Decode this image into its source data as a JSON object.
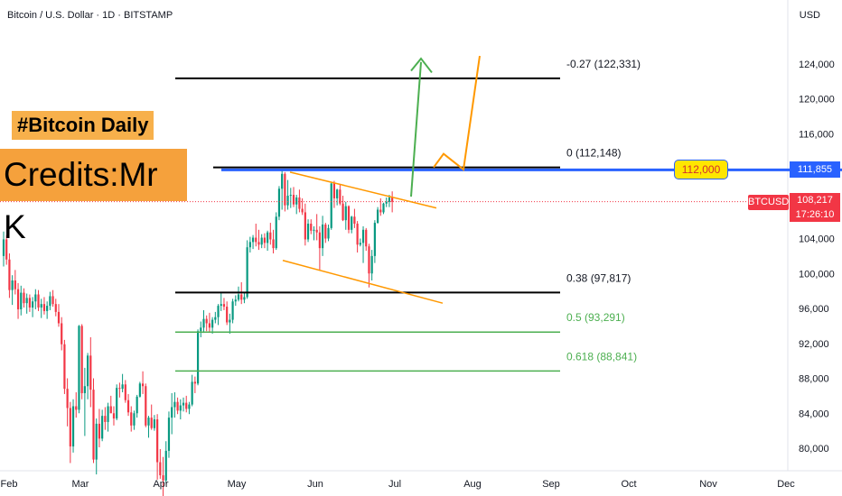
{
  "header": {
    "title": "Bitcoin / U.S. Dollar · 1D · BITSTAMP",
    "currency": "USD"
  },
  "badges": {
    "daily": "#Bitcoin Daily",
    "credits": "Credits:Mr K"
  },
  "price_tags": {
    "level_line": "111,855",
    "symbol": "BTCUSD",
    "last_price": "108,217",
    "countdown": "17:26:10",
    "target": "112,000"
  },
  "colors": {
    "up": "#089981",
    "down": "#f23645",
    "fib_black": "#000000",
    "fib_green": "#4caf50",
    "resistance": "#2962ff",
    "channel": "#ff9800",
    "arrow_green": "#4caf50",
    "arrow_orange": "#ff9800"
  },
  "chart_data": {
    "type": "candlestick",
    "y_axis": {
      "min": 77000,
      "max": 128000,
      "ticks": [
        80000,
        84000,
        88000,
        92000,
        96000,
        100000,
        104000,
        108000,
        112000,
        116000,
        120000,
        124000
      ],
      "tick_labels": [
        "80,000",
        "84,000",
        "88,000",
        "92,000",
        "96,000",
        "100,000",
        "104,000",
        "108,000",
        "112,000",
        "116,000",
        "120,000",
        "124,000"
      ]
    },
    "x_axis": {
      "labels": [
        "Feb",
        "Mar",
        "Apr",
        "May",
        "Jun",
        "Jul",
        "Aug",
        "Sep",
        "Oct",
        "Nov",
        "Dec"
      ]
    },
    "fib_levels": [
      {
        "label": "-0.27 (122,331)",
        "price": 122331,
        "color": "black"
      },
      {
        "label": "0 (112,148)",
        "price": 112148,
        "color": "black"
      },
      {
        "label": "0.38 (97,817)",
        "price": 97817,
        "color": "black"
      },
      {
        "label": "0.5 (93,291)",
        "price": 93291,
        "color": "green"
      },
      {
        "label": "0.618 (88,841)",
        "price": 88841,
        "color": "green"
      }
    ],
    "resistance": 111855,
    "candles": [
      [
        0,
        102000,
        104800,
        100800,
        103900
      ],
      [
        1,
        103900,
        104400,
        101000,
        101600
      ],
      [
        2,
        101600,
        102300,
        97200,
        98100
      ],
      [
        3,
        98100,
        99800,
        96400,
        99200
      ],
      [
        4,
        99200,
        100400,
        97600,
        98200
      ],
      [
        5,
        98200,
        98900,
        94800,
        95900
      ],
      [
        6,
        95900,
        98600,
        95200,
        97800
      ],
      [
        7,
        97800,
        98300,
        96100,
        96600
      ],
      [
        8,
        96600,
        97700,
        95400,
        97200
      ],
      [
        9,
        97200,
        97600,
        95600,
        96100
      ],
      [
        10,
        96100,
        97300,
        95000,
        96800
      ],
      [
        11,
        96800,
        98200,
        95900,
        97600
      ],
      [
        12,
        97600,
        98100,
        95700,
        96100
      ],
      [
        13,
        96100,
        97100,
        94900,
        96500
      ],
      [
        14,
        96500,
        97300,
        95300,
        95700
      ],
      [
        15,
        95700,
        96800,
        94800,
        96300
      ],
      [
        16,
        96300,
        97900,
        95800,
        97400
      ],
      [
        17,
        97400,
        98100,
        96200,
        96500
      ],
      [
        18,
        96500,
        97100,
        95100,
        95600
      ],
      [
        19,
        95600,
        96500,
        93900,
        94300
      ],
      [
        20,
        94300,
        95000,
        91200,
        91900
      ],
      [
        21,
        91900,
        92400,
        86200,
        86800
      ],
      [
        22,
        86800,
        88000,
        82500,
        84600
      ],
      [
        23,
        84600,
        85300,
        78300,
        80200
      ],
      [
        24,
        80200,
        85600,
        79500,
        84800
      ],
      [
        25,
        84800,
        86400,
        83500,
        84400
      ],
      [
        26,
        84400,
        94100,
        84000,
        94000
      ],
      [
        27,
        94000,
        94200,
        85600,
        86300
      ],
      [
        28,
        86300,
        89200,
        81400,
        87100
      ],
      [
        29,
        87100,
        90900,
        85600,
        90600
      ],
      [
        30,
        90600,
        92700,
        84700,
        86700
      ],
      [
        31,
        86700,
        88000,
        78300,
        78700
      ],
      [
        32,
        78700,
        83400,
        77000,
        82800
      ],
      [
        33,
        82800,
        84500,
        80100,
        81100
      ],
      [
        34,
        81100,
        84400,
        80800,
        83700
      ],
      [
        35,
        83700,
        84700,
        82100,
        83000
      ],
      [
        36,
        83000,
        85200,
        81900,
        84800
      ],
      [
        37,
        84800,
        86000,
        84000,
        84000
      ],
      [
        38,
        84000,
        84800,
        82600,
        83400
      ],
      [
        39,
        83400,
        87300,
        83200,
        86900
      ],
      [
        40,
        86900,
        87500,
        85800,
        86800
      ],
      [
        41,
        86800,
        88500,
        86400,
        87300
      ],
      [
        42,
        87300,
        87800,
        85200,
        85500
      ],
      [
        43,
        85500,
        86200,
        83700,
        84100
      ],
      [
        44,
        84100,
        84800,
        81900,
        82600
      ],
      [
        45,
        82600,
        84300,
        82100,
        84000
      ],
      [
        46,
        84000,
        86100,
        83500,
        85900
      ],
      [
        47,
        85900,
        87600,
        85800,
        87400
      ],
      [
        48,
        87400,
        88800,
        86200,
        87100
      ],
      [
        49,
        87100,
        87400,
        82400,
        82600
      ],
      [
        50,
        82600,
        83700,
        81200,
        83500
      ],
      [
        51,
        83500,
        85000,
        82100,
        82300
      ],
      [
        52,
        82300,
        83800,
        82000,
        83300
      ],
      [
        53,
        83300,
        83900,
        76400,
        78400
      ],
      [
        54,
        78400,
        79900,
        76500,
        76900
      ],
      [
        55,
        76900,
        79000,
        74500,
        76300
      ],
      [
        56,
        76300,
        80800,
        76000,
        79700
      ],
      [
        57,
        79700,
        84200,
        78900,
        83500
      ],
      [
        58,
        83500,
        86300,
        81600,
        84700
      ],
      [
        59,
        84700,
        86400,
        83500,
        85300
      ],
      [
        60,
        85300,
        85800,
        83900,
        84300
      ],
      [
        61,
        84300,
        85600,
        83300,
        84900
      ],
      [
        62,
        84900,
        85800,
        84200,
        85200
      ],
      [
        63,
        85200,
        86000,
        84100,
        84500
      ],
      [
        64,
        84500,
        85300,
        83900,
        85000
      ],
      [
        65,
        85000,
        88400,
        84800,
        87600
      ],
      [
        66,
        87600,
        88200,
        86300,
        87400
      ],
      [
        67,
        87400,
        93600,
        87200,
        93400
      ],
      [
        68,
        93400,
        94500,
        92700,
        93800
      ],
      [
        69,
        93800,
        95800,
        93200,
        94800
      ],
      [
        70,
        94800,
        95200,
        93400,
        94300
      ],
      [
        71,
        94300,
        95500,
        93300,
        93800
      ],
      [
        72,
        93800,
        95000,
        93100,
        94700
      ],
      [
        73,
        94700,
        95600,
        94300,
        95000
      ],
      [
        74,
        95000,
        96500,
        94100,
        96300
      ],
      [
        75,
        96300,
        97900,
        95700,
        96500
      ],
      [
        76,
        96500,
        97200,
        95800,
        96200
      ],
      [
        77,
        96200,
        96800,
        94100,
        94400
      ],
      [
        78,
        94400,
        95400,
        93100,
        94700
      ],
      [
        79,
        94700,
        97100,
        94300,
        96800
      ],
      [
        80,
        96800,
        97500,
        96300,
        97000
      ],
      [
        81,
        97000,
        98500,
        96800,
        97600
      ],
      [
        82,
        97600,
        99000,
        96500,
        97000
      ],
      [
        83,
        97000,
        97800,
        96600,
        97300
      ],
      [
        84,
        97300,
        103800,
        97100,
        103000
      ],
      [
        85,
        103000,
        104200,
        102400,
        103600
      ],
      [
        86,
        103600,
        104400,
        102800,
        104100
      ],
      [
        87,
        104100,
        105700,
        103100,
        103600
      ],
      [
        88,
        103600,
        105000,
        102700,
        103300
      ],
      [
        89,
        103300,
        104500,
        102900,
        104100
      ],
      [
        90,
        104100,
        104600,
        102900,
        103500
      ],
      [
        91,
        103500,
        104900,
        102600,
        104700
      ],
      [
        92,
        104700,
        105800,
        103300,
        103900
      ],
      [
        93,
        103900,
        105000,
        102300,
        102900
      ],
      [
        94,
        102900,
        107000,
        102700,
        106500
      ],
      [
        95,
        106500,
        110000,
        106100,
        109700
      ],
      [
        96,
        109700,
        111900,
        107300,
        111400
      ],
      [
        97,
        111400,
        111600,
        107100,
        107800
      ],
      [
        98,
        107800,
        110700,
        107300,
        108900
      ],
      [
        99,
        108900,
        109800,
        107500,
        109000
      ],
      [
        100,
        109000,
        109900,
        107600,
        107900
      ],
      [
        101,
        107900,
        109000,
        106800,
        108700
      ],
      [
        102,
        108700,
        109600,
        107000,
        107400
      ],
      [
        103,
        107400,
        108600,
        106700,
        107000
      ],
      [
        104,
        107000,
        108000,
        103200,
        103900
      ],
      [
        105,
        103900,
        106200,
        103600,
        105700
      ],
      [
        106,
        105700,
        106200,
        104500,
        104900
      ],
      [
        107,
        104900,
        105400,
        103800,
        105000
      ],
      [
        108,
        105000,
        106800,
        103800,
        104700
      ],
      [
        109,
        104700,
        105400,
        100400,
        102900
      ],
      [
        110,
        102900,
        106600,
        102000,
        105600
      ],
      [
        111,
        105600,
        105800,
        103500,
        104000
      ],
      [
        112,
        104000,
        105600,
        103700,
        105200
      ],
      [
        113,
        105200,
        110400,
        105000,
        110300
      ],
      [
        114,
        110300,
        110600,
        107500,
        108600
      ],
      [
        115,
        108600,
        109700,
        107800,
        109600
      ],
      [
        116,
        109600,
        110200,
        107800,
        108000
      ],
      [
        117,
        108000,
        108900,
        106000,
        106100
      ],
      [
        118,
        106100,
        108200,
        105000,
        107700
      ],
      [
        119,
        107700,
        107800,
        104600,
        105000
      ],
      [
        120,
        105000,
        106600,
        104600,
        106500
      ],
      [
        121,
        106500,
        107400,
        105200,
        105700
      ],
      [
        122,
        105700,
        106000,
        102400,
        103300
      ],
      [
        123,
        103300,
        104000,
        103100,
        103500
      ],
      [
        124,
        103500,
        105400,
        101200,
        105000
      ],
      [
        125,
        105000,
        105200,
        102600,
        103100
      ],
      [
        126,
        103100,
        103400,
        98400,
        100000
      ],
      [
        127,
        100000,
        102700,
        99200,
        102000
      ],
      [
        128,
        102000,
        106100,
        101200,
        105800
      ],
      [
        129,
        105800,
        107600,
        105700,
        107300
      ],
      [
        130,
        107300,
        108600,
        106600,
        107000
      ],
      [
        131,
        107000,
        108100,
        106800,
        108000
      ],
      [
        132,
        108000,
        108700,
        107600,
        108200
      ],
      [
        133,
        108200,
        109000,
        107600,
        108700
      ],
      [
        134,
        108700,
        109400,
        107000,
        108217
      ]
    ]
  }
}
